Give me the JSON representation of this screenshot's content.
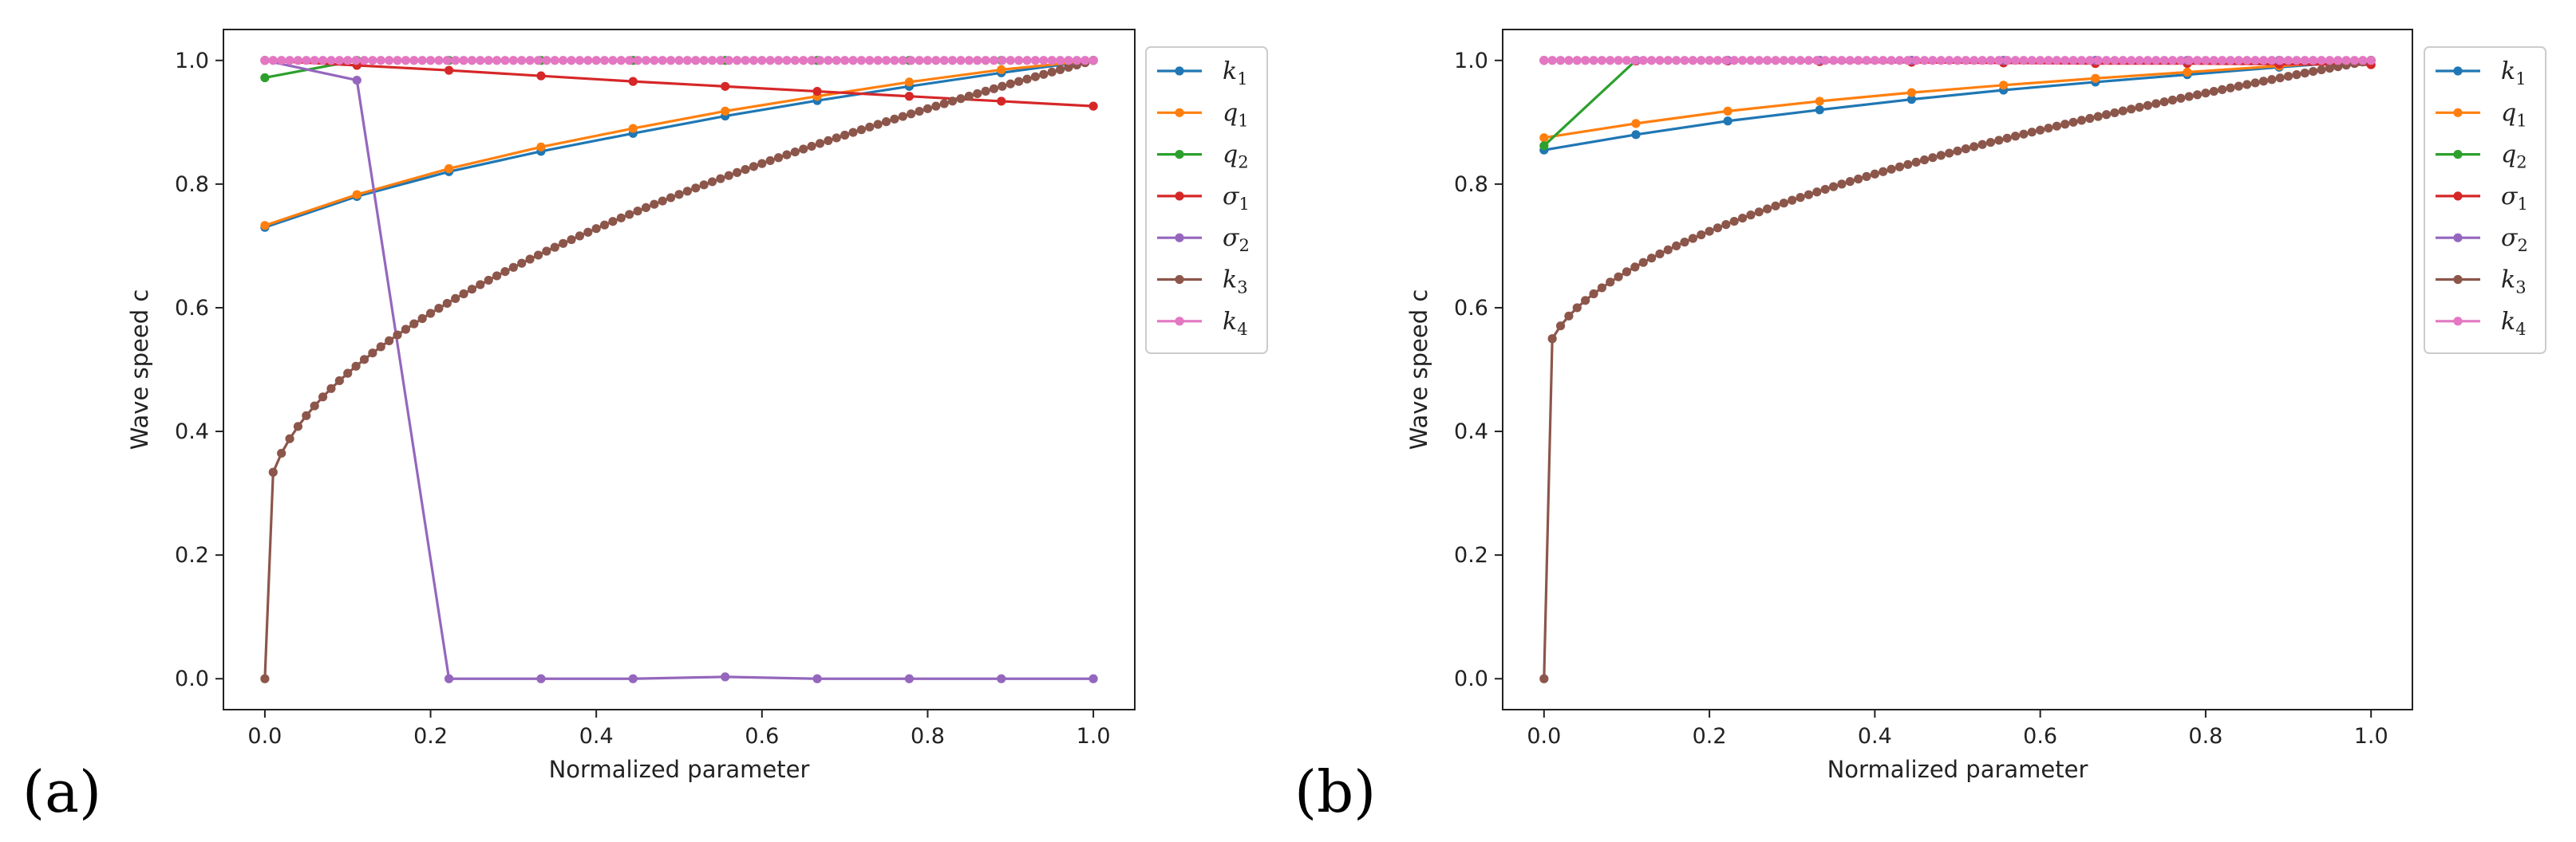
{
  "panel_labels": [
    "(a)",
    "(b)"
  ],
  "colors": {
    "k1": "#1f77b4",
    "q1": "#ff7f0e",
    "q2": "#2ca02c",
    "sigma1": "#d62728",
    "sigma2": "#9467bd",
    "k3": "#8c564b",
    "k4": "#e377c2"
  },
  "chart_data": [
    {
      "type": "line",
      "panel_label": "(a)",
      "title": "",
      "xlabel": "Normalized parameter",
      "ylabel": "Wave speed c",
      "xlim": [
        -0.05,
        1.05
      ],
      "ylim": [
        -0.05,
        1.05
      ],
      "xticks": [
        0.0,
        0.2,
        0.4,
        0.6,
        0.8,
        1.0
      ],
      "xtick_labels": [
        "0.0",
        "0.2",
        "0.4",
        "0.6",
        "0.8",
        "1.0"
      ],
      "yticks": [
        0.0,
        0.2,
        0.4,
        0.6,
        0.8,
        1.0
      ],
      "ytick_labels": [
        "0.0",
        "0.2",
        "0.4",
        "0.6",
        "0.8",
        "1.0"
      ],
      "legend_position": "outside-right-top",
      "series": [
        {
          "key": "k1",
          "base": "k",
          "sub": "1",
          "x": [
            0,
            0.1111,
            0.2222,
            0.3333,
            0.4444,
            0.5556,
            0.6667,
            0.7778,
            0.8889,
            1.0
          ],
          "values": [
            0.73,
            0.78,
            0.82,
            0.853,
            0.882,
            0.91,
            0.935,
            0.958,
            0.98,
            1.0
          ]
        },
        {
          "key": "q1",
          "base": "q",
          "sub": "1",
          "x": [
            0,
            0.1111,
            0.2222,
            0.3333,
            0.4444,
            0.5556,
            0.6667,
            0.7778,
            0.8889,
            1.0
          ],
          "values": [
            0.733,
            0.783,
            0.825,
            0.86,
            0.89,
            0.918,
            0.942,
            0.965,
            0.985,
            1.0
          ]
        },
        {
          "key": "q2",
          "base": "q",
          "sub": "2",
          "x": [
            0,
            0.1111,
            0.2222,
            0.3333,
            0.4444,
            0.5556,
            0.6667,
            0.7778,
            0.8889,
            1.0
          ],
          "values": [
            0.972,
            1.0,
            1.0,
            1.0,
            1.0,
            1.0,
            1.0,
            1.0,
            1.0,
            1.0
          ]
        },
        {
          "key": "sigma1",
          "base": "σ",
          "sub": "1",
          "x": [
            0,
            0.1111,
            0.2222,
            0.3333,
            0.4444,
            0.5556,
            0.6667,
            0.7778,
            0.8889,
            1.0
          ],
          "values": [
            1.0,
            0.992,
            0.984,
            0.975,
            0.966,
            0.958,
            0.95,
            0.942,
            0.934,
            0.926
          ]
        },
        {
          "key": "sigma2",
          "base": "σ",
          "sub": "2",
          "x": [
            0,
            0.1111,
            0.2222,
            0.3333,
            0.4444,
            0.5556,
            0.6667,
            0.7778,
            0.8889,
            1.0
          ],
          "values": [
            1.0,
            0.968,
            0.0,
            0.0,
            0.0,
            0.003,
            0.0,
            0.0,
            0.0,
            0.0
          ]
        },
        {
          "key": "k3",
          "base": "k",
          "sub": "3",
          "generator": "sqrt_ramp",
          "x_start": 0.0,
          "x_end": 1.0,
          "points": 101,
          "value_at_start": 0.0,
          "value_at_end": 1.0,
          "value_offset": 0.26,
          "value_gain": 0.74
        },
        {
          "key": "k4",
          "base": "k",
          "sub": "4",
          "generator": "constant",
          "x_start": 0.0,
          "x_end": 1.0,
          "points": 101,
          "value": 1.0
        }
      ]
    },
    {
      "type": "line",
      "panel_label": "(b)",
      "title": "",
      "xlabel": "Normalized parameter",
      "ylabel": "Wave speed c",
      "xlim": [
        -0.05,
        1.05
      ],
      "ylim": [
        -0.05,
        1.05
      ],
      "xticks": [
        0.0,
        0.2,
        0.4,
        0.6,
        0.8,
        1.0
      ],
      "xtick_labels": [
        "0.0",
        "0.2",
        "0.4",
        "0.6",
        "0.8",
        "1.0"
      ],
      "yticks": [
        0.0,
        0.2,
        0.4,
        0.6,
        0.8,
        1.0
      ],
      "ytick_labels": [
        "0.0",
        "0.2",
        "0.4",
        "0.6",
        "0.8",
        "1.0"
      ],
      "legend_position": "outside-right-top",
      "series": [
        {
          "key": "k1",
          "base": "k",
          "sub": "1",
          "x": [
            0,
            0.1111,
            0.2222,
            0.3333,
            0.4444,
            0.5556,
            0.6667,
            0.7778,
            0.8889,
            1.0
          ],
          "values": [
            0.855,
            0.88,
            0.902,
            0.92,
            0.937,
            0.952,
            0.965,
            0.977,
            0.989,
            1.0
          ]
        },
        {
          "key": "q1",
          "base": "q",
          "sub": "1",
          "x": [
            0,
            0.1111,
            0.2222,
            0.3333,
            0.4444,
            0.5556,
            0.6667,
            0.7778,
            0.8889,
            1.0
          ],
          "values": [
            0.875,
            0.898,
            0.918,
            0.934,
            0.948,
            0.96,
            0.971,
            0.981,
            0.991,
            1.0
          ]
        },
        {
          "key": "q2",
          "base": "q",
          "sub": "2",
          "x": [
            0,
            0.1111,
            0.2222,
            0.3333,
            0.4444,
            0.5556,
            0.6667,
            0.7778,
            0.8889,
            1.0
          ],
          "values": [
            0.862,
            1.0,
            1.0,
            1.0,
            1.0,
            1.0,
            1.0,
            1.0,
            1.0,
            1.0
          ]
        },
        {
          "key": "sigma1",
          "base": "σ",
          "sub": "1",
          "x": [
            0,
            0.1111,
            0.2222,
            0.3333,
            0.4444,
            0.5556,
            0.6667,
            0.7778,
            0.8889,
            1.0
          ],
          "values": [
            1.0,
            0.999,
            0.999,
            0.998,
            0.997,
            0.996,
            0.995,
            0.995,
            0.994,
            0.993
          ]
        },
        {
          "key": "sigma2",
          "base": "σ",
          "sub": "2",
          "x": [
            0,
            0.1111,
            0.2222,
            0.3333,
            0.4444,
            0.5556,
            0.6667,
            0.7778,
            0.8889,
            1.0
          ],
          "values": [
            1.0,
            1.0,
            1.0,
            1.0,
            1.0,
            1.0,
            1.0,
            1.0,
            1.0,
            1.0
          ]
        },
        {
          "key": "k3",
          "base": "k",
          "sub": "3",
          "generator": "sqrt_ramp",
          "x_start": 0.0,
          "x_end": 1.0,
          "points": 101,
          "value_at_start": 0.0,
          "value_at_end": 1.0,
          "value_offset": 0.5,
          "value_gain": 0.5
        },
        {
          "key": "k4",
          "base": "k",
          "sub": "4",
          "generator": "constant",
          "x_start": 0.0,
          "x_end": 1.0,
          "points": 101,
          "value": 1.0
        }
      ]
    }
  ]
}
